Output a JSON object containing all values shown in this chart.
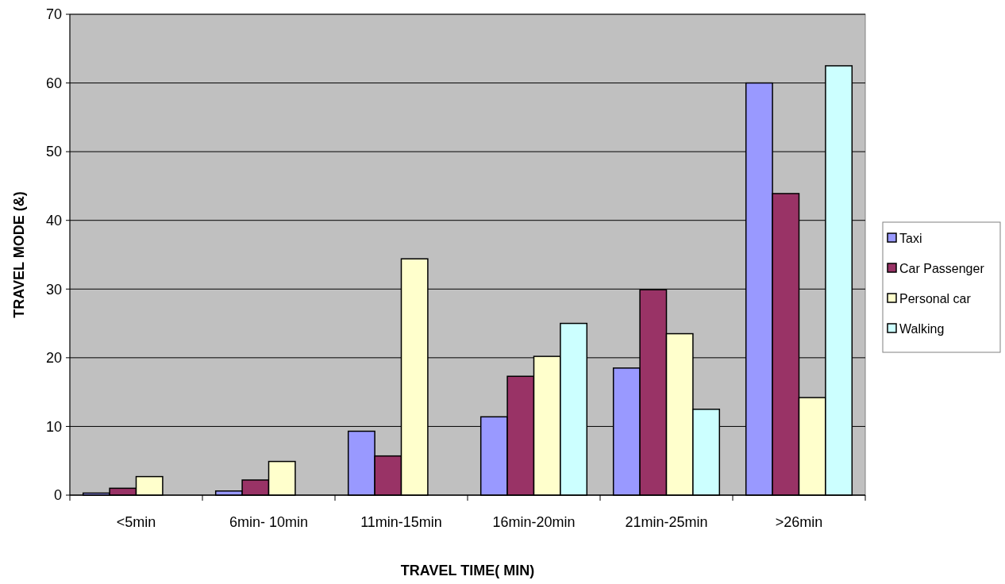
{
  "chart_data": {
    "type": "bar",
    "xlabel": "TRAVEL TIME( MIN)",
    "ylabel": "TRAVEL MODE (&)",
    "categories": [
      "<5min",
      "6min- 10min",
      "11min-15min",
      "16min-20min",
      "21min-25min",
      ">26min"
    ],
    "series": [
      {
        "name": "Taxi",
        "color": "#9999ff",
        "values": [
          0.3,
          0.6,
          9.3,
          11.4,
          18.5,
          60
        ]
      },
      {
        "name": "Car Passenger",
        "color": "#993366",
        "values": [
          1.0,
          2.2,
          5.7,
          17.3,
          29.9,
          43.9
        ]
      },
      {
        "name": "Personal car",
        "color": "#ffffcc",
        "values": [
          2.7,
          4.9,
          34.4,
          20.2,
          23.5,
          14.2
        ]
      },
      {
        "name": "Walking",
        "color": "#ccffff",
        "values": [
          0,
          0,
          0,
          25,
          12.5,
          62.5
        ]
      }
    ],
    "ylim": [
      0,
      70
    ],
    "yticks": [
      0,
      10,
      20,
      30,
      40,
      50,
      60,
      70
    ],
    "grid": "y",
    "legend": "right"
  }
}
